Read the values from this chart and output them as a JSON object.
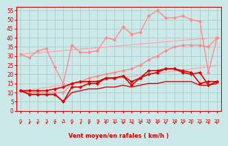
{
  "bg_color": "#cce8e8",
  "grid_color": "#aacccc",
  "xlabel": "Vent moyen/en rafales ( km/h )",
  "xlim": [
    -0.5,
    23.5
  ],
  "ylim": [
    0,
    57
  ],
  "yticks": [
    0,
    5,
    10,
    15,
    20,
    25,
    30,
    35,
    40,
    45,
    50,
    55
  ],
  "xticks": [
    0,
    1,
    2,
    3,
    4,
    5,
    6,
    7,
    8,
    9,
    10,
    11,
    12,
    13,
    14,
    15,
    16,
    17,
    18,
    19,
    20,
    21,
    22,
    23
  ],
  "series": [
    {
      "comment": "light pink straight line - lower (linear trend ~11 to 26)",
      "color": "#ffaaaa",
      "lw": 1.0,
      "marker": null,
      "values": [
        11,
        11.6,
        12.2,
        12.8,
        13.4,
        14,
        14.6,
        15.2,
        15.8,
        16.4,
        17,
        17.6,
        18.2,
        18.8,
        19.4,
        20,
        20.6,
        21.2,
        21.8,
        22.4,
        23,
        23.6,
        24.2,
        25
      ]
    },
    {
      "comment": "light pink straight line - upper (linear trend ~31 to 40)",
      "color": "#ffaaaa",
      "lw": 1.0,
      "marker": null,
      "values": [
        31,
        31.4,
        31.8,
        32.2,
        32.6,
        33,
        33.4,
        33.8,
        34.2,
        34.6,
        35,
        35.4,
        35.8,
        36.2,
        36.6,
        37,
        37.4,
        37.8,
        38.2,
        38.6,
        39,
        39.4,
        39.8,
        40
      ]
    },
    {
      "comment": "medium pink with markers - rafales line (spiky, higher)",
      "color": "#ff8888",
      "lw": 1.0,
      "marker": "D",
      "marker_size": 2.2,
      "values": [
        31,
        29,
        33,
        34,
        24,
        15,
        36,
        32,
        32,
        33,
        40,
        39,
        46,
        42,
        43,
        52,
        55,
        51,
        51,
        52,
        50,
        49,
        21,
        40
      ]
    },
    {
      "comment": "medium pink with markers - moyen line",
      "color": "#ff8888",
      "lw": 1.0,
      "marker": "D",
      "marker_size": 2.2,
      "values": [
        11,
        10,
        10,
        10,
        10,
        10,
        15,
        16,
        18,
        19,
        20,
        21,
        22,
        23,
        25,
        28,
        30,
        33,
        35,
        36,
        36,
        36,
        35,
        40
      ]
    },
    {
      "comment": "dark red with markers - lower wind series 1",
      "color": "#dd0000",
      "lw": 1.2,
      "marker": "D",
      "marker_size": 2.2,
      "values": [
        11,
        9,
        9,
        9,
        9,
        5,
        13,
        13,
        15,
        15,
        18,
        18,
        19,
        14,
        18,
        20,
        21,
        23,
        23,
        21,
        20,
        21,
        14,
        16
      ]
    },
    {
      "comment": "dark red with markers - lower wind series 2",
      "color": "#dd0000",
      "lw": 1.2,
      "marker": "D",
      "marker_size": 2.2,
      "values": [
        11,
        11,
        11,
        11,
        12,
        13,
        15,
        16,
        16,
        16,
        18,
        18,
        19,
        16,
        18,
        22,
        22,
        23,
        23,
        22,
        21,
        15,
        16,
        16
      ]
    },
    {
      "comment": "dark red bottom flat - lowest series",
      "color": "#dd0000",
      "lw": 1.0,
      "marker": null,
      "values": [
        11,
        9,
        9,
        9,
        9,
        5,
        10,
        11,
        12,
        12,
        13,
        13,
        14,
        13,
        14,
        15,
        15,
        16,
        16,
        16,
        16,
        14,
        14,
        15
      ]
    }
  ],
  "arrow_chars": [
    "↙",
    "↙",
    "↙",
    "↙",
    "↙",
    "←",
    "↙",
    "↙",
    "↙",
    "↙",
    "↓",
    "↓",
    "↙",
    "↘",
    "↙",
    "↓",
    "↙",
    "↙",
    "↙",
    "↙",
    "↓",
    "↙",
    "↓",
    "↓"
  ],
  "arrow_color": "#cc0000",
  "tick_label_color": "#cc0000",
  "xlabel_color": "#cc0000",
  "tick_color": "#cc0000"
}
